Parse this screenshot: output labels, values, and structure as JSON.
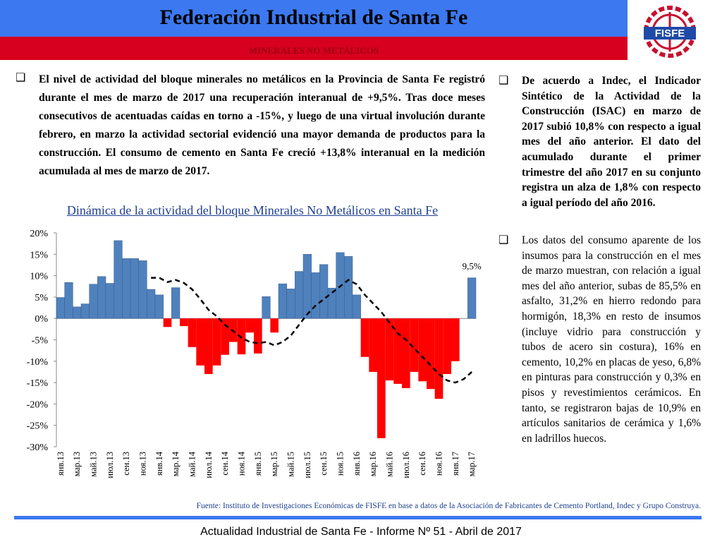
{
  "header": {
    "title": "Federación Industrial de Santa Fe",
    "subtitle": "MINERALES NO METÁLICOS",
    "logo_text": "FISFE"
  },
  "body": {
    "left_paragraph": "El nivel de actividad del bloque minerales no metálicos en la Provincia de Santa Fe registró durante el mes de marzo de 2017 una recuperación interanual de +9,5%. Tras doce meses consecutivos de acentuadas caídas en torno a -15%, y luego de una virtual involución durante febrero, en marzo la actividad sectorial evidenció una mayor demanda de productos para la construcción. El consumo de cemento en Santa Fe creció +13,8% interanual en la medición acumulada al mes de marzo de 2017.",
    "right_bullets": [
      "De acuerdo a Indec, el Indicador Sintético de la Actividad de la Construcción (ISAC) en marzo de 2017 subió 10,8% con respecto a igual mes del año anterior. El dato del acumulado durante el primer trimestre del año 2017 en su conjunto registra un alza de 1,8% con respecto a igual período del año 2016.",
      "Los datos del consumo aparente de los insumos para la construcción en el mes de marzo muestran, con relación a igual mes del año anterior, subas de 85,5% en asfalto, 31,2% en hierro redondo para hormigón, 18,3% en resto de insumos (incluye vidrio para construcción y tubos de acero sin costura), 16% en cemento, 10,2% en placas de yeso, 6,8% en pinturas para construcción y 0,3% en pisos y revestimientos cerámicos. En tanto, se registraron bajas de 10,9% en artículos sanitarios de cerámica y 1,6% en ladrillos huecos."
    ]
  },
  "chart_data": {
    "type": "bar",
    "title": "Dinámica de la actividad del bloque Minerales No Metálicos en Santa Fe",
    "categories": [
      "янв.13",
      null,
      "мар.13",
      null,
      "май.13",
      null,
      "июл.13",
      null,
      "сен.13",
      null,
      "ноя.13",
      null,
      "янв.14",
      null,
      "мар.14",
      null,
      "май.14",
      null,
      "июл.14",
      null,
      "сен.14",
      null,
      "ноя.14",
      null,
      "янв.15",
      null,
      "мар.15",
      null,
      "май.15",
      null,
      "июл.15",
      null,
      "сен.15",
      null,
      "ноя.15",
      null,
      "янв.16",
      null,
      "мар.16",
      null,
      "май.16",
      null,
      "июл.16",
      null,
      "сен.16",
      null,
      "ноя.16",
      null,
      "янв.17",
      null,
      "мар.17"
    ],
    "values": [
      4.9,
      8.4,
      2.7,
      3.4,
      8.0,
      9.8,
      8.2,
      18.2,
      14,
      14,
      13.5,
      6.8,
      5.5,
      -2,
      7.2,
      -1.8,
      -6.7,
      -11,
      -13,
      -11,
      -8.5,
      -5.5,
      -8.4,
      -3.3,
      -8.2,
      5.1,
      -3.3,
      8.1,
      6.9,
      11,
      15,
      10.7,
      12.6,
      7.1,
      15.4,
      14.5,
      5.5,
      -9,
      -12.5,
      -28,
      -14.5,
      -15.3,
      -16.3,
      -12.5,
      -14.7,
      -16.5,
      -18.8,
      -13,
      -10,
      0,
      9.5
    ],
    "trend_values": [
      null,
      null,
      null,
      null,
      null,
      null,
      null,
      null,
      null,
      null,
      null,
      9.5,
      9.5,
      8.5,
      9,
      8.3,
      6.8,
      4.5,
      2,
      0.5,
      -1.5,
      -3,
      -4.5,
      -5.5,
      -5.8,
      -5.5,
      -6.3,
      -5.5,
      -4,
      -1.5,
      1,
      3,
      4.5,
      6,
      7.5,
      9,
      8,
      5.5,
      3.5,
      1.5,
      -1,
      -3.5,
      -5,
      -7,
      -9,
      -11,
      -13,
      -14.5,
      -15,
      -14.2,
      -12.5
    ],
    "annotation": "9,5%",
    "color": "#4f81bd",
    "negative_color": "#ff0000",
    "trend_color": "#000000",
    "ylim": [
      -30,
      20
    ],
    "yticks": [
      {
        "value": -30,
        "label": "-30%"
      },
      {
        "value": -25,
        "label": "-25%"
      },
      {
        "value": -20,
        "label": "-20%"
      },
      {
        "value": -15,
        "label": "-15%"
      },
      {
        "value": -10,
        "label": "-10%"
      },
      {
        "value": -5,
        "label": "-5%"
      },
      {
        "value": 0,
        "label": "0%"
      },
      {
        "value": 5,
        "label": "5%"
      },
      {
        "value": 10,
        "label": "10%"
      },
      {
        "value": 15,
        "label": "15%"
      },
      {
        "value": 20,
        "label": "20%"
      }
    ]
  },
  "source": "Fuente: Instituto de Investigaciones Económicas de FISFE en base a datos de la Asociación de Fabricantes de Cemento Portland, Indec y Grupo Construya.",
  "footer": "Actualidad Industrial de Santa Fe - Informe Nº 51 - Abril de 2017"
}
